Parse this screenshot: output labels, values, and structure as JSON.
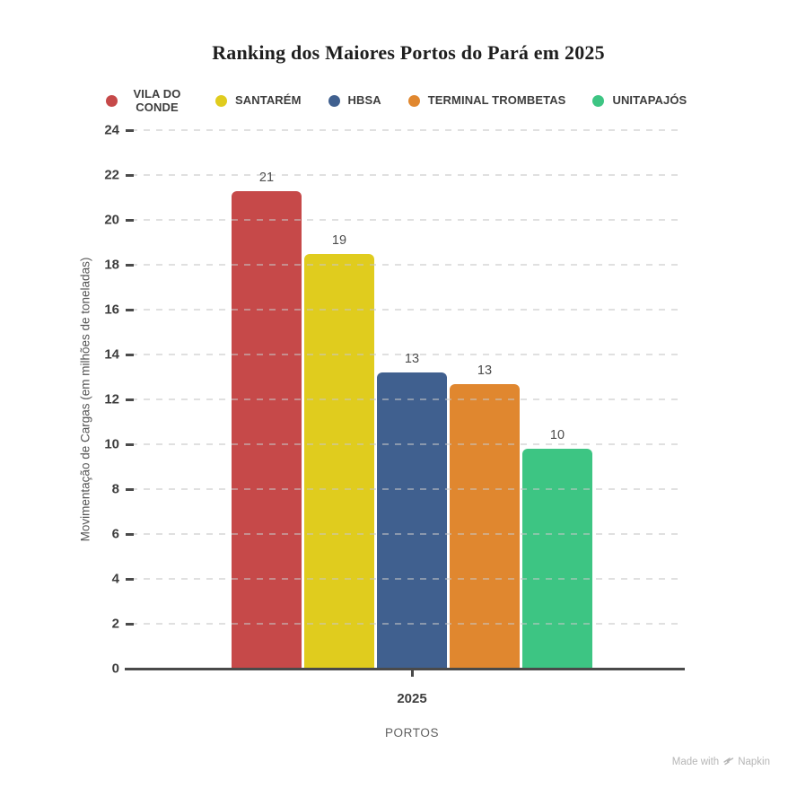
{
  "chart_data": {
    "type": "bar",
    "title": "Ranking dos Maiores Portos do Pará em 2025",
    "xlabel": "PORTOS",
    "ylabel": "Movimentação de Cargas (em milhões de toneladas)",
    "categories": [
      "2025"
    ],
    "x_category": "2025",
    "series": [
      {
        "name": "VILA DO CONDE",
        "value": 21.3,
        "label": "21",
        "color": "#C64949"
      },
      {
        "name": "SANTARÉM",
        "value": 18.5,
        "label": "19",
        "color": "#E0CC1E"
      },
      {
        "name": "HBSA",
        "value": 13.2,
        "label": "13",
        "color": "#40608F"
      },
      {
        "name": "TERMINAL TROMBETAS",
        "value": 12.7,
        "label": "13",
        "color": "#E0872F"
      },
      {
        "name": "UNITAPAJÓS",
        "value": 9.8,
        "label": "10",
        "color": "#3DC583"
      }
    ],
    "ylim": [
      0,
      24
    ],
    "ytick_step": 2,
    "grid": "dashed-horizontal",
    "legend_position": "top"
  },
  "watermark": {
    "prefix": "Made with",
    "brand": "Napkin"
  },
  "colors": {
    "grid": "#c6c6c6",
    "axis": "#4a4a4a",
    "tick_label": "#3d3d3d",
    "value_label": "#4d4d4d",
    "title": "#1e1e1e",
    "watermark": "#b6b6b6"
  }
}
